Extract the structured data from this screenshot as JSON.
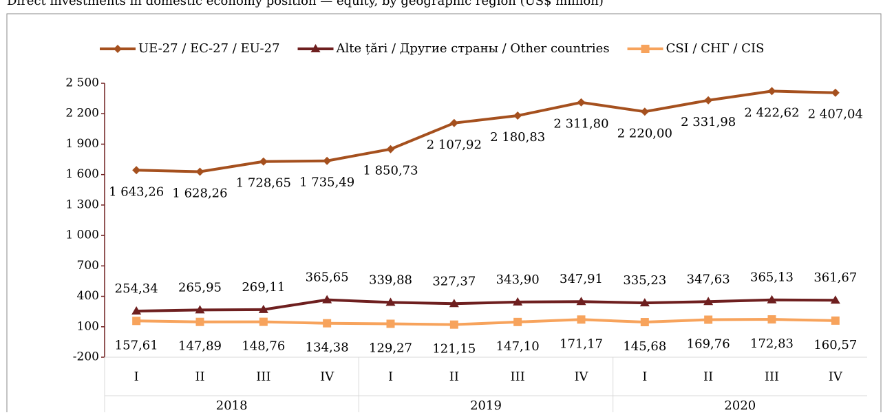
{
  "chart_data": {
    "type": "line",
    "title": "Direct investments in domestic economy position — equity, by geographic region (US$ million)",
    "categories": [
      "I",
      "II",
      "III",
      "IV",
      "I",
      "II",
      "III",
      "IV",
      "I",
      "II",
      "III",
      "IV"
    ],
    "years": [
      "2018",
      "2019",
      "2020"
    ],
    "ylim": [
      -200,
      2500
    ],
    "yticks": [
      -200,
      100,
      400,
      700,
      {
        "value": 1000,
        "label": "1 000"
      },
      {
        "value": 1300,
        "label": "1 300"
      },
      {
        "value": 1600,
        "label": "1 600"
      },
      {
        "value": 1900,
        "label": "1 900"
      },
      {
        "value": 2200,
        "label": "2 200"
      },
      {
        "value": 2500,
        "label": "2 500"
      }
    ],
    "series": [
      {
        "name": "UE-27 / ЕС-27 / EU-27",
        "color": "#a5501e",
        "marker": "diamond",
        "values": [
          1643.26,
          1628.26,
          1728.65,
          1735.49,
          1850.73,
          2107.92,
          2180.83,
          2311.8,
          2220.0,
          2331.98,
          2422.62,
          2407.04
        ],
        "value_labels": [
          "1 643,26",
          "1 628,26",
          "1 728,65",
          "1 735,49",
          "1 850,73",
          "2 107,92",
          "2 180,83",
          "2 311,80",
          "2 220,00",
          "2 331,98",
          "2 422,62",
          "2 407,04"
        ]
      },
      {
        "name": "Alte țări / Другие страны / Other countries",
        "color": "#6e1f1f",
        "marker": "triangle",
        "values": [
          254.34,
          265.95,
          269.11,
          365.65,
          339.88,
          327.37,
          343.9,
          347.91,
          335.23,
          347.63,
          365.13,
          361.67
        ],
        "value_labels": [
          "254,34",
          "265,95",
          "269,11",
          "365,65",
          "339,88",
          "327,37",
          "343,90",
          "347,91",
          "335,23",
          "347,63",
          "365,13",
          "361,67"
        ]
      },
      {
        "name": "CSI / СНГ / CIS",
        "color": "#f7a35c",
        "marker": "square",
        "values": [
          157.61,
          147.89,
          148.76,
          134.38,
          129.27,
          121.15,
          147.1,
          171.17,
          145.68,
          169.76,
          172.83,
          160.57
        ],
        "value_labels": [
          "157,61",
          "147,89",
          "148,76",
          "134,38",
          "129,27",
          "121,15",
          "147,10",
          "171,17",
          "145,68",
          "169,76",
          "172,83",
          "160,57"
        ]
      }
    ]
  }
}
